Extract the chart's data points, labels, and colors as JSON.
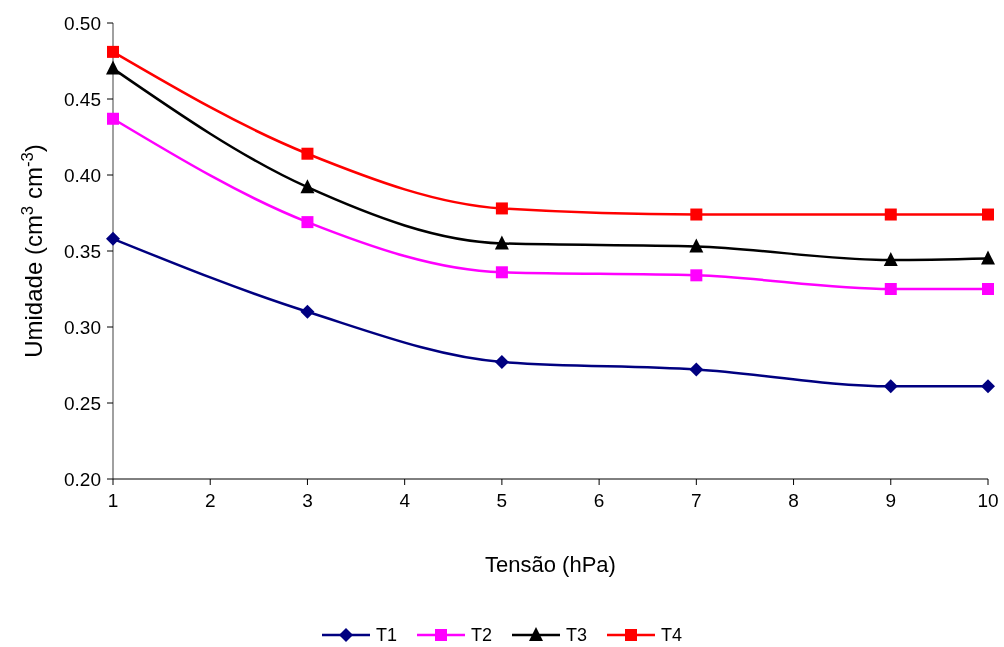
{
  "chart_data": {
    "type": "line",
    "xlabel": "Tensão (hPa)",
    "ylabel": "Umidade (cm$^{3}$ cm$^{-3}$)",
    "xlim": [
      1,
      10
    ],
    "xticks": [
      1,
      2,
      3,
      4,
      5,
      6,
      7,
      8,
      9,
      10
    ],
    "ylim": [
      0.2,
      0.5
    ],
    "yticks": [
      {
        "value": 0.2,
        "label": "0.20"
      },
      {
        "value": 0.25,
        "label": "0.25"
      },
      {
        "value": 0.3,
        "label": "0.30"
      },
      {
        "value": 0.35,
        "label": "0.35"
      },
      {
        "value": 0.4,
        "label": "0.40"
      },
      {
        "value": 0.45,
        "label": "0.45"
      },
      {
        "value": 0.5,
        "label": "0.50"
      }
    ],
    "x": [
      1,
      3,
      5,
      7,
      9,
      10
    ],
    "legend": "bottom",
    "grid": false,
    "series": [
      {
        "name": "T1",
        "color": "#000080",
        "marker": "diamond",
        "values": [
          0.358,
          0.31,
          0.277,
          0.272,
          0.261,
          0.261
        ]
      },
      {
        "name": "T2",
        "color": "#ff00ff",
        "marker": "square",
        "values": [
          0.437,
          0.369,
          0.336,
          0.334,
          0.325,
          0.325
        ]
      },
      {
        "name": "T3",
        "color": "#000000",
        "marker": "triangle",
        "values": [
          0.47,
          0.392,
          0.355,
          0.353,
          0.344,
          0.345
        ]
      },
      {
        "name": "T4",
        "color": "#ff0000",
        "marker": "square",
        "values": [
          0.481,
          0.414,
          0.378,
          0.374,
          0.374,
          0.374
        ]
      }
    ]
  }
}
